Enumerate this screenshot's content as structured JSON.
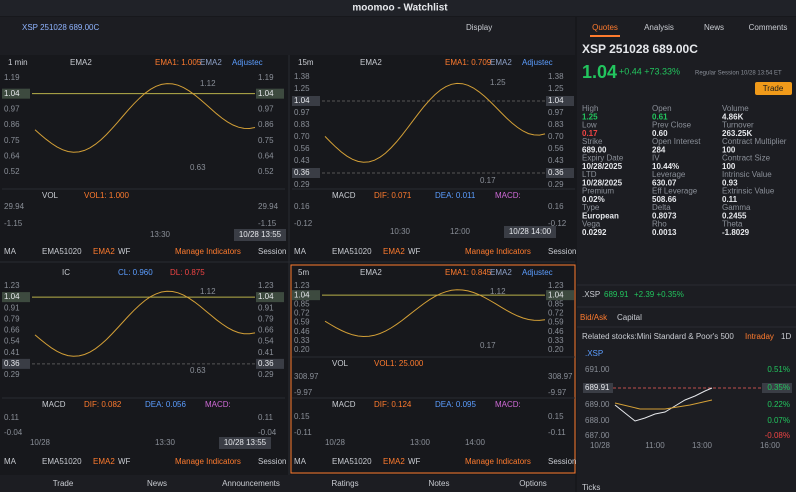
{
  "window": {
    "title": "moomoo - Watchlist"
  },
  "toolbar": {
    "symbol": "XSP 251028 689.00C",
    "display": "Display"
  },
  "panel_footer": [
    "MA",
    "EMA51020",
    "EMA2",
    "WF",
    "Manage Indicators",
    "Session"
  ],
  "panels": [
    {
      "timeframe": "1 min",
      "indicator": "EMA2",
      "fields": [
        "EMA1: 1.005",
        "EMA2",
        "Adjustec"
      ],
      "price_labels": [
        "1.19",
        "1.04",
        "0.97",
        "0.86",
        "0.75",
        "0.64",
        "0.52"
      ],
      "annotations": [
        "1.12",
        "0.63"
      ],
      "subs": [
        {
          "name": "VOL",
          "fields": [
            "VOL1: 1.000"
          ],
          "labels": [
            "29.94",
            "-1.15"
          ]
        }
      ],
      "x_labels": [
        "13:30",
        "10/28 13:55"
      ]
    },
    {
      "timeframe": "15m",
      "indicator": "EMA2",
      "fields": [
        "EMA1: 0.709",
        "EMA2",
        "Adjustec"
      ],
      "price_labels": [
        "1.38",
        "1.25",
        "1.04",
        "0.97",
        "0.83",
        "0.70",
        "0.56",
        "0.43",
        "0.36",
        "0.29"
      ],
      "annotations": [
        "1.25",
        "0.17"
      ],
      "subs": [
        {
          "name": "MACD",
          "fields": [
            "DIF: 0.071",
            "DEA: 0.011",
            "MACD:"
          ],
          "labels": [
            "0.16",
            "-0.12"
          ]
        }
      ],
      "x_labels": [
        "10:30",
        "12:00",
        "10/28 14:00"
      ]
    },
    {
      "timeframe": "",
      "indicator": "IC",
      "fields": [
        "CL: 0.960",
        "DL: 0.875"
      ],
      "price_labels": [
        "1.23",
        "1.04",
        "0.91",
        "0.79",
        "0.66",
        "0.54",
        "0.41",
        "0.36",
        "0.29"
      ],
      "annotations": [
        "1.12",
        "0.63"
      ],
      "subs": [
        {
          "name": "MACD",
          "fields": [
            "DIF: 0.082",
            "DEA: 0.056",
            "MACD:"
          ],
          "labels": [
            "0.11",
            "-0.04"
          ]
        }
      ],
      "x_labels": [
        "10/28",
        "13:30",
        "10/28 13:55"
      ]
    },
    {
      "timeframe": "5m",
      "indicator": "EMA2",
      "fields": [
        "EMA1: 0.845",
        "EMA2",
        "Adjustec"
      ],
      "price_labels": [
        "1.23",
        "1.04",
        "0.85",
        "0.72",
        "0.59",
        "0.46",
        "0.33",
        "0.20"
      ],
      "annotations": [
        "1.12",
        "0.17"
      ],
      "subs": [
        {
          "name": "VOL",
          "fields": [
            "VOL1: 25.000"
          ],
          "labels": [
            "308.97",
            "-9.97"
          ]
        },
        {
          "name": "MACD",
          "fields": [
            "DIF: 0.124",
            "DEA: 0.095",
            "MACD:"
          ],
          "labels": [
            "0.15",
            "-0.11"
          ]
        }
      ],
      "x_labels": [
        "10/28",
        "13:00",
        "14:00"
      ]
    }
  ],
  "bottom_nav": [
    "Trade",
    "News",
    "Announcements",
    "Ratings",
    "Notes",
    "Options"
  ],
  "quote": {
    "tabs": [
      "Quotes",
      "Analysis",
      "News",
      "Comments"
    ],
    "symbol": "XSP 251028 689.00C",
    "price": "1.04",
    "change": "+0.44 +73.33%",
    "session": "Regular Session 10/28 13:54 ET",
    "trade": "Trade",
    "fields": [
      [
        "High",
        "1.25"
      ],
      [
        "Open",
        "0.61"
      ],
      [
        "Volume",
        "4.86K"
      ],
      [
        "Low",
        "0.17"
      ],
      [
        "Prev Close",
        "0.60"
      ],
      [
        "Turnover",
        "263.25K"
      ],
      [
        "Strike",
        "689.00"
      ],
      [
        "Open Interest",
        "284"
      ],
      [
        "Contract Multiplier",
        "100"
      ],
      [
        "Expiry Date",
        "10/28/2025"
      ],
      [
        "IV",
        "10.44%"
      ],
      [
        "Contract Size",
        "100"
      ],
      [
        "LTD",
        "10/28/2025"
      ],
      [
        "Leverage",
        "630.07"
      ],
      [
        "Intrinsic Value",
        "0.93"
      ],
      [
        "Premium",
        "0.02%"
      ],
      [
        "Eff Leverage",
        "508.66"
      ],
      [
        "Extrinsic Value",
        "0.11"
      ],
      [
        "Type",
        "European"
      ],
      [
        "Delta",
        "0.8073"
      ],
      [
        "Gamma",
        "0.2455"
      ],
      [
        "Vega",
        "0.0292"
      ],
      [
        "Rho",
        "0.0013"
      ],
      [
        "Theta",
        "-1.8029"
      ]
    ],
    "underlying": {
      "name": ".XSP",
      "price": "689.91",
      "change": "+2.39 +0.35%"
    },
    "sub_tabs": [
      "Bid/Ask",
      "Capital"
    ],
    "related": "Related stocks:Mini Standard & Poor's 500",
    "ranges": [
      "Intraday",
      "1D"
    ],
    "mini_chart": {
      "name": ".XSP",
      "left_labels": [
        "691.00",
        "689.91",
        "689.00",
        "688.00",
        "687.00"
      ],
      "right_labels": [
        "0.51%",
        "0.35%",
        "0.22%",
        "0.07%",
        "-0.08%"
      ],
      "x_labels": [
        "10/28",
        "11:00",
        "13:00",
        "16:00"
      ]
    },
    "ticks": "Ticks"
  }
}
